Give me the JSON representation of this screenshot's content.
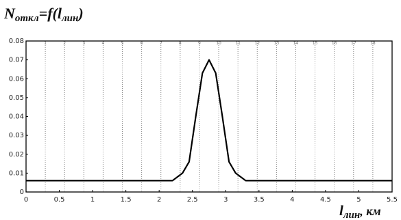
{
  "title": {
    "main": "N",
    "sub1": "откл",
    "mid": "=f(l",
    "sub2": "лин",
    "end": ")"
  },
  "xlabel": {
    "main": "l",
    "sub": "лин",
    "unit": ", км"
  },
  "chart_data": {
    "type": "line",
    "title": "Nоткл=f(lлин)",
    "xlabel": "lлин, км",
    "ylabel": "",
    "xlim": [
      0,
      5.5
    ],
    "ylim": [
      0,
      0.08
    ],
    "grid": "vertical",
    "x_tick_labels": [
      "0",
      "0.5",
      "1",
      "1.5",
      "2",
      "2.5",
      "3",
      "3.5",
      "4",
      "4.5",
      "5",
      "5.5"
    ],
    "y_tick_labels": [
      "0",
      "0.01",
      "0.02",
      "0.03",
      "0.04",
      "0.05",
      "0.06",
      "0.07",
      "0.08"
    ],
    "top_labels": [
      "1",
      "2",
      "3",
      "4",
      "5",
      "6",
      "7",
      "8",
      "9",
      "10",
      "11",
      "12",
      "13",
      "14",
      "15",
      "16",
      "17",
      "18"
    ],
    "series": [
      {
        "x": [
          0,
          0.5,
          1.0,
          1.5,
          2.0,
          2.2,
          2.35,
          2.45,
          2.55,
          2.65,
          2.75,
          2.85,
          2.95,
          3.05,
          3.15,
          3.3,
          3.5,
          4.0,
          4.5,
          5.0,
          5.5
        ],
        "y": [
          0.006,
          0.006,
          0.006,
          0.006,
          0.006,
          0.006,
          0.01,
          0.016,
          0.04,
          0.063,
          0.07,
          0.063,
          0.04,
          0.016,
          0.01,
          0.006,
          0.006,
          0.006,
          0.006,
          0.006,
          0.006
        ]
      }
    ]
  }
}
